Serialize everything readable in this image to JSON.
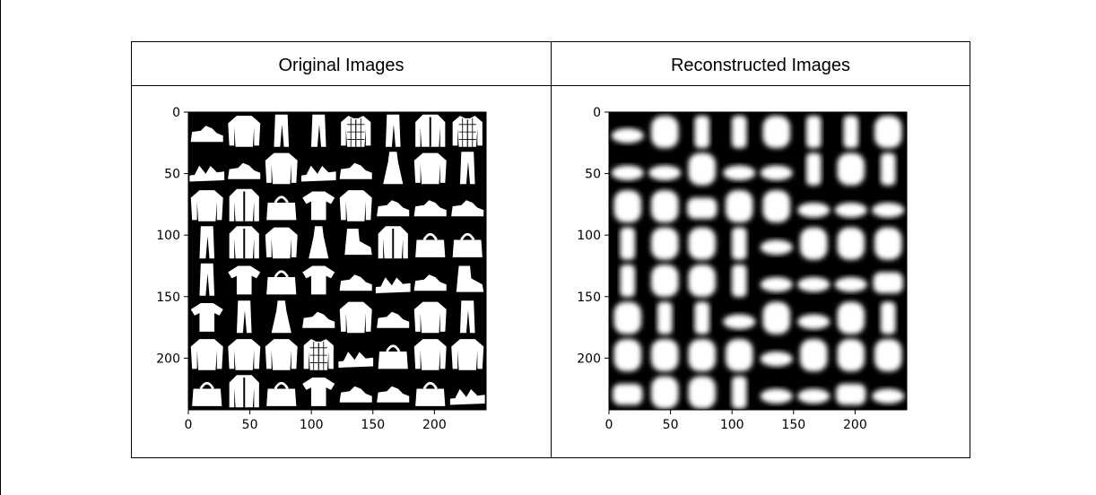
{
  "headers": {
    "left": "Original Images",
    "right": "Reconstructed Images"
  },
  "colors": {
    "background": "#000000",
    "item": "#ffffff",
    "border": "#000000"
  },
  "chart_data": [
    {
      "type": "image",
      "title": "",
      "xlabel": "",
      "ylabel": "",
      "xlim": [
        0,
        242
      ],
      "ylim": [
        242,
        0
      ],
      "xticks": [
        "0",
        "50",
        "100",
        "150",
        "200"
      ],
      "yticks": [
        "0",
        "50",
        "100",
        "150",
        "200"
      ],
      "grid": "8x8",
      "blur": false,
      "cells": [
        [
          "sneaker",
          "pullover",
          "trouser",
          "trouser",
          "shirt",
          "trouser",
          "coat",
          "shirt"
        ],
        [
          "sandal",
          "sneaker",
          "pullover",
          "sandal",
          "sneaker",
          "dress",
          "pullover",
          "trouser"
        ],
        [
          "pullover",
          "coat",
          "bag",
          "tshirt",
          "pullover",
          "sneaker",
          "sneaker",
          "sneaker"
        ],
        [
          "trouser",
          "coat",
          "pullover",
          "dress",
          "ankle-boot",
          "coat",
          "bag",
          "bag"
        ],
        [
          "trouser",
          "tshirt",
          "bag",
          "tshirt",
          "sneaker",
          "sandal",
          "sneaker",
          "ankle-boot"
        ],
        [
          "tshirt",
          "trouser",
          "dress",
          "sneaker",
          "pullover",
          "sneaker",
          "pullover",
          "trouser"
        ],
        [
          "pullover",
          "pullover",
          "pullover",
          "shirt",
          "sandal",
          "bag",
          "pullover",
          "pullover"
        ],
        [
          "bag",
          "coat",
          "bag",
          "tshirt",
          "sneaker",
          "sneaker",
          "bag",
          "sandal"
        ]
      ]
    },
    {
      "type": "image",
      "title": "",
      "xlabel": "",
      "ylabel": "",
      "xlim": [
        0,
        242
      ],
      "ylim": [
        242,
        0
      ],
      "xticks": [
        "0",
        "50",
        "100",
        "150",
        "200"
      ],
      "yticks": [
        "0",
        "50",
        "100",
        "150",
        "200"
      ],
      "grid": "8x8",
      "blur": true,
      "cells": [
        [
          "shoe-blob",
          "shirt-blob",
          "trouser-blob",
          "trouser-blob",
          "shirt-blob",
          "trouser-blob",
          "trouser-blob",
          "shirt-blob"
        ],
        [
          "shoe-blob",
          "shoe-blob",
          "shirt-blob",
          "shoe-blob",
          "shoe-blob",
          "trouser-blob",
          "shirt-blob",
          "trouser-blob"
        ],
        [
          "shirt-blob",
          "shirt-blob",
          "bag-blob",
          "shirt-blob",
          "shirt-blob",
          "shoe-blob",
          "shoe-blob",
          "shoe-blob"
        ],
        [
          "trouser-blob",
          "shirt-blob",
          "shirt-blob",
          "trouser-blob",
          "shoe-blob",
          "shirt-blob",
          "shirt-blob",
          "shirt-blob"
        ],
        [
          "trouser-blob",
          "shirt-blob",
          "shirt-blob",
          "trouser-blob",
          "shoe-blob",
          "shoe-blob",
          "shoe-blob",
          "bag-blob"
        ],
        [
          "shirt-blob",
          "trouser-blob",
          "trouser-blob",
          "shoe-blob",
          "shirt-blob",
          "shoe-blob",
          "shirt-blob",
          "trouser-blob"
        ],
        [
          "shirt-blob",
          "shirt-blob",
          "shirt-blob",
          "shirt-blob",
          "shoe-blob",
          "shirt-blob",
          "shirt-blob",
          "shirt-blob"
        ],
        [
          "bag-blob",
          "shirt-blob",
          "shirt-blob",
          "trouser-blob",
          "shoe-blob",
          "shoe-blob",
          "bag-blob",
          "shoe-blob"
        ]
      ]
    }
  ]
}
